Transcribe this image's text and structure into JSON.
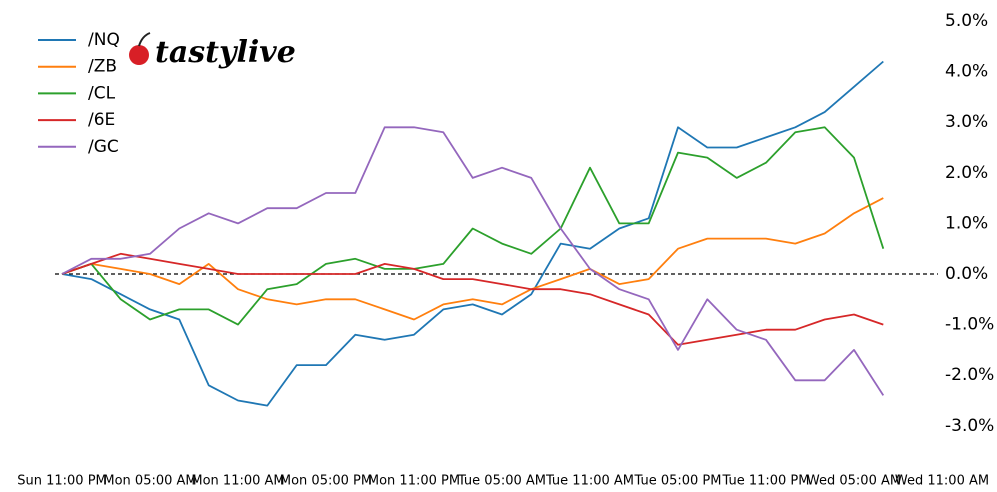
{
  "chart_data": {
    "type": "line",
    "logo": "tastylive",
    "x": [
      "Sun 11:00 PM",
      "Mon 01:00 AM",
      "Mon 03:00 AM",
      "Mon 05:00 AM",
      "Mon 07:00 AM",
      "Mon 09:00 AM",
      "Mon 11:00 AM",
      "Mon 01:00 PM",
      "Mon 03:00 PM",
      "Mon 05:00 PM",
      "Mon 07:00 PM",
      "Mon 09:00 PM",
      "Mon 11:00 PM",
      "Tue 01:00 AM",
      "Tue 03:00 AM",
      "Tue 05:00 AM",
      "Tue 07:00 AM",
      "Tue 09:00 AM",
      "Tue 11:00 AM",
      "Tue 01:00 PM",
      "Tue 03:00 PM",
      "Tue 05:00 PM",
      "Tue 07:00 PM",
      "Tue 09:00 PM",
      "Tue 11:00 PM",
      "Wed 01:00 AM",
      "Wed 03:00 AM",
      "Wed 05:00 AM",
      "Wed 07:00 AM"
    ],
    "xticks": [
      "Sun 11:00 PM",
      "Mon 05:00 AM",
      "Mon 11:00 AM",
      "Mon 05:00 PM",
      "Mon 11:00 PM",
      "Tue 05:00 AM",
      "Tue 11:00 AM",
      "Tue 05:00 PM",
      "Tue 11:00 PM",
      "Wed 05:00 AM",
      "Wed 11:00 AM"
    ],
    "xtick_step_hours": 6,
    "x_step_hours": 2,
    "series": [
      {
        "name": "/NQ",
        "color": "#1f77b4",
        "values": [
          0,
          -0.1,
          -0.4,
          -0.7,
          -0.9,
          -2.2,
          -2.5,
          -2.6,
          -1.8,
          -1.8,
          -1.2,
          -1.3,
          -1.2,
          -0.7,
          -0.6,
          -0.8,
          -0.4,
          0.6,
          0.5,
          0.9,
          1.1,
          2.9,
          2.5,
          2.5,
          2.7,
          2.9,
          3.2,
          3.7,
          4.2
        ]
      },
      {
        "name": "/ZB",
        "color": "#ff7f0e",
        "values": [
          0,
          0.2,
          0.1,
          0,
          -0.2,
          0.2,
          -0.3,
          -0.5,
          -0.6,
          -0.5,
          -0.5,
          -0.7,
          -0.9,
          -0.6,
          -0.5,
          -0.6,
          -0.3,
          -0.1,
          0.1,
          -0.2,
          -0.1,
          0.5,
          0.7,
          0.7,
          0.7,
          0.6,
          0.8,
          1.2,
          1.5
        ]
      },
      {
        "name": "/CL",
        "color": "#2ca02c",
        "values": [
          0,
          0.2,
          -0.5,
          -0.9,
          -0.7,
          -0.7,
          -1.0,
          -0.3,
          -0.2,
          0.2,
          0.3,
          0.1,
          0.1,
          0.2,
          0.9,
          0.6,
          0.4,
          0.9,
          2.1,
          1.0,
          1.0,
          2.4,
          2.3,
          1.9,
          2.2,
          2.8,
          2.9,
          2.3,
          0.5
        ]
      },
      {
        "name": "/6E",
        "color": "#d62728",
        "values": [
          0,
          0.2,
          0.4,
          0.3,
          0.2,
          0.1,
          0,
          0,
          0,
          0,
          0,
          0.2,
          0.1,
          -0.1,
          -0.1,
          -0.2,
          -0.3,
          -0.3,
          -0.4,
          -0.6,
          -0.8,
          -1.4,
          -1.3,
          -1.2,
          -1.1,
          -1.1,
          -0.9,
          -0.8,
          -1.0
        ]
      },
      {
        "name": "/GC",
        "color": "#9467bd",
        "values": [
          0,
          0.3,
          0.3,
          0.4,
          0.9,
          1.2,
          1.0,
          1.3,
          1.3,
          1.6,
          1.6,
          2.9,
          2.9,
          2.8,
          1.9,
          2.1,
          1.9,
          0.9,
          0.1,
          -0.3,
          -0.5,
          -1.5,
          -0.5,
          -1.1,
          -1.3,
          -2.1,
          -2.1,
          -1.5,
          -2.4
        ]
      }
    ],
    "ylim": [
      -3.5,
      5.2
    ],
    "yticks": [
      {
        "value": 5,
        "label": "5.0%"
      },
      {
        "value": 4,
        "label": "4.0%"
      },
      {
        "value": 3,
        "label": "3.0%"
      },
      {
        "value": 2,
        "label": "2.0%"
      },
      {
        "value": 1,
        "label": "1.0%"
      },
      {
        "value": 0,
        "label": "0.0%"
      },
      {
        "value": -1,
        "label": "-1.0%"
      },
      {
        "value": -2,
        "label": "-2.0%"
      },
      {
        "value": -3,
        "label": "-3.0%"
      }
    ],
    "zero_line": true,
    "legend": "upper left"
  }
}
